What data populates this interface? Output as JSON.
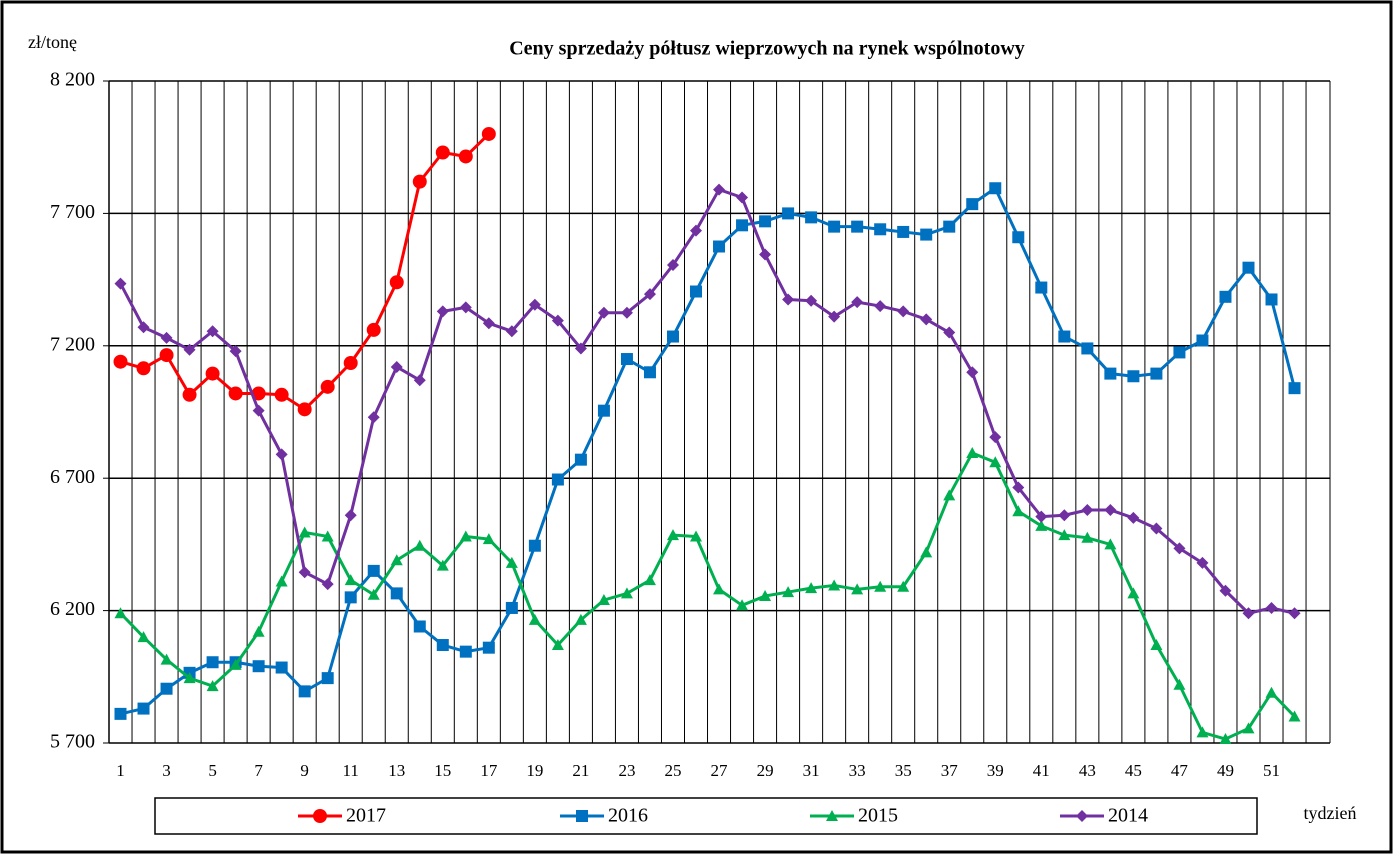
{
  "chart_data": {
    "type": "line",
    "title": "Ceny sprzedaży półtusz wieprzowych  na rynek wspólnotowy",
    "y_label": "zł/tonę",
    "x_label": "tydzień",
    "categories": [
      "1",
      null,
      "3",
      null,
      "5",
      null,
      "7",
      null,
      "9",
      null,
      "11",
      null,
      "13",
      null,
      "15",
      null,
      "17",
      null,
      "19",
      null,
      "21",
      null,
      "23",
      null,
      "25",
      null,
      "27",
      null,
      "29",
      null,
      "31",
      null,
      "33",
      null,
      "35",
      null,
      "37",
      null,
      "39",
      null,
      "41",
      null,
      "43",
      null,
      "45",
      null,
      "47",
      null,
      "49",
      null,
      "51",
      null
    ],
    "ylim": [
      5700,
      8200
    ],
    "yticks": [
      {
        "value": 5700,
        "label": "5 700"
      },
      {
        "value": 6200,
        "label": "6 200"
      },
      {
        "value": 6700,
        "label": "6 700"
      },
      {
        "value": 7200,
        "label": "7 200"
      },
      {
        "value": 7700,
        "label": "7 700"
      },
      {
        "value": 8200,
        "label": "8 200"
      }
    ],
    "grid": true,
    "legend": "bottom",
    "series": [
      {
        "name": "2017",
        "color": "#ff0000",
        "marker": "circle",
        "values": [
          7140,
          7115,
          7165,
          7015,
          7095,
          7020,
          7020,
          7015,
          6960,
          7045,
          7135,
          7260,
          7440,
          7820,
          7930,
          7915,
          8000,
          null,
          null,
          null,
          null,
          null,
          null,
          null,
          null,
          null,
          null,
          null,
          null,
          null,
          null,
          null,
          null,
          null,
          null,
          null,
          null,
          null,
          null,
          null,
          null,
          null,
          null,
          null,
          null,
          null,
          null,
          null,
          null,
          null,
          null,
          null
        ]
      },
      {
        "name": "2016",
        "color": "#0070c0",
        "marker": "square",
        "values": [
          5810,
          5830,
          5905,
          5965,
          6005,
          6005,
          5990,
          5985,
          5895,
          5945,
          6250,
          6350,
          6265,
          6140,
          6070,
          6045,
          6060,
          6210,
          6445,
          6695,
          6770,
          6955,
          7150,
          7100,
          7235,
          7405,
          7575,
          7655,
          7670,
          7700,
          7685,
          7650,
          7650,
          7640,
          7630,
          7620,
          7650,
          7735,
          7795,
          7610,
          7420,
          7235,
          7190,
          7095,
          7085,
          7095,
          7175,
          7220,
          7385,
          7495,
          7375,
          7040
        ]
      },
      {
        "name": "2015",
        "color": "#00b050",
        "marker": "triangle",
        "values": [
          6190,
          6100,
          6015,
          5945,
          5915,
          5995,
          6120,
          6310,
          6495,
          6480,
          6315,
          6260,
          6390,
          6445,
          6370,
          6480,
          6470,
          6380,
          6165,
          6070,
          6165,
          6240,
          6265,
          6315,
          6485,
          6480,
          6280,
          6220,
          6255,
          6270,
          6285,
          6295,
          6280,
          6290,
          6290,
          6420,
          6635,
          6795,
          6760,
          6575,
          6520,
          6485,
          6475,
          6450,
          6265,
          6070,
          5920,
          5740,
          5715,
          5755,
          5890,
          5800
        ]
      },
      {
        "name": "2014",
        "color": "#7030a0",
        "marker": "diamond",
        "values": [
          7435,
          7270,
          7230,
          7185,
          7255,
          7180,
          6955,
          6790,
          6345,
          6300,
          6560,
          6930,
          7120,
          7070,
          7330,
          7345,
          7285,
          7255,
          7355,
          7295,
          7190,
          7325,
          7325,
          7395,
          7505,
          7635,
          7790,
          7760,
          7545,
          7375,
          7370,
          7310,
          7365,
          7350,
          7330,
          7300,
          7250,
          7100,
          6855,
          6665,
          6555,
          6560,
          6580,
          6580,
          6550,
          6510,
          6435,
          6380,
          6275,
          6190,
          6210,
          6190
        ]
      }
    ]
  }
}
